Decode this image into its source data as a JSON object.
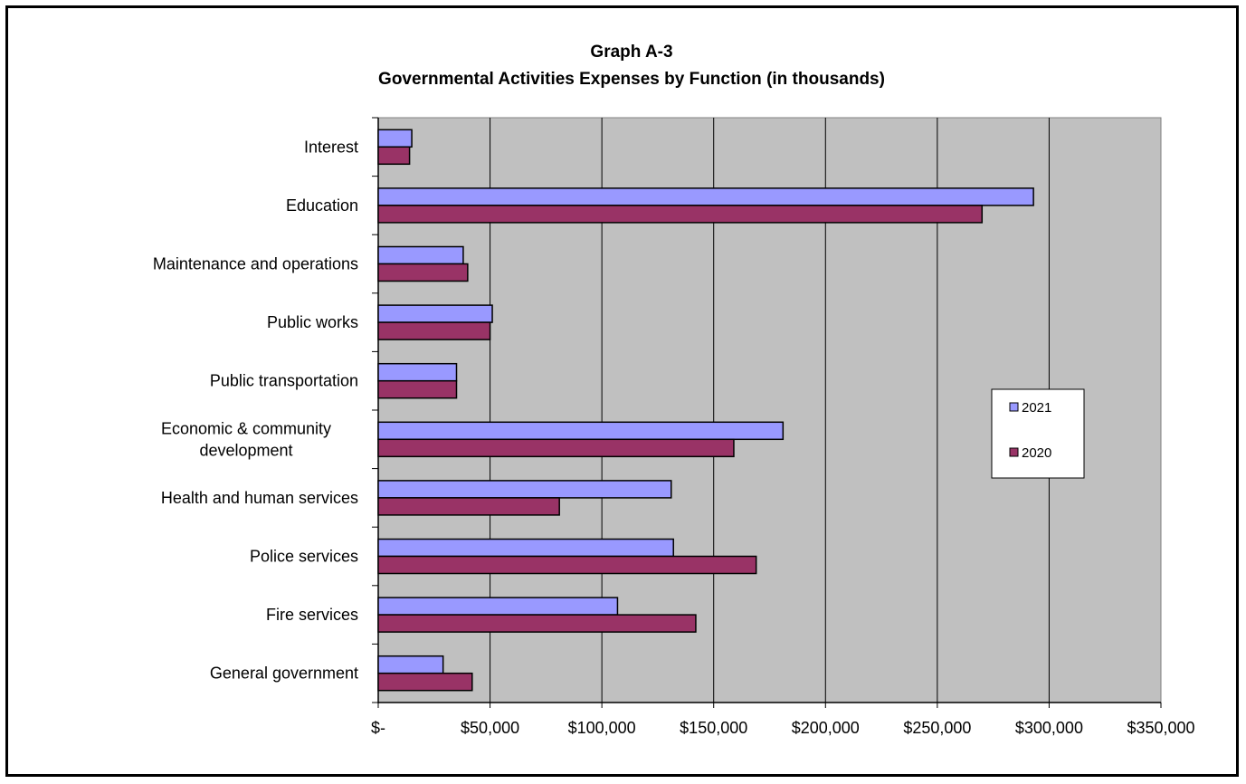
{
  "chart_data": {
    "type": "bar",
    "orientation": "horizontal",
    "title": "Graph A-3",
    "subtitle": "Governmental Activities Expenses by Function (in thousands)",
    "categories": [
      "General government",
      "Fire services",
      "Police services",
      "Health and human services",
      "Economic & community development",
      "Public transportation",
      "Public works",
      "Maintenance and operations",
      "Education",
      "Interest"
    ],
    "category_lines": [
      [
        "General government"
      ],
      [
        "Fire services"
      ],
      [
        "Police services"
      ],
      [
        "Health and human services"
      ],
      [
        "Economic & community",
        "development"
      ],
      [
        "Public transportation"
      ],
      [
        "Public works"
      ],
      [
        "Maintenance and operations"
      ],
      [
        "Education"
      ],
      [
        "Interest"
      ]
    ],
    "series": [
      {
        "name": "2021",
        "color": "#9999FF",
        "values": [
          29000,
          107000,
          132000,
          131000,
          181000,
          35000,
          51000,
          38000,
          293000,
          15000
        ]
      },
      {
        "name": "2020",
        "color": "#993366",
        "values": [
          42000,
          142000,
          169000,
          81000,
          159000,
          35000,
          50000,
          40000,
          270000,
          14000
        ]
      }
    ],
    "xlim": [
      0,
      350000
    ],
    "x_ticks": [
      "$-",
      "$50,000",
      "$100,000",
      "$150,000",
      "$200,000",
      "$250,000",
      "$300,000",
      "$350,000"
    ],
    "xlabel": "",
    "ylabel": "",
    "grid": true,
    "plot_background": "#C0C0C0",
    "legend_position": "right"
  }
}
